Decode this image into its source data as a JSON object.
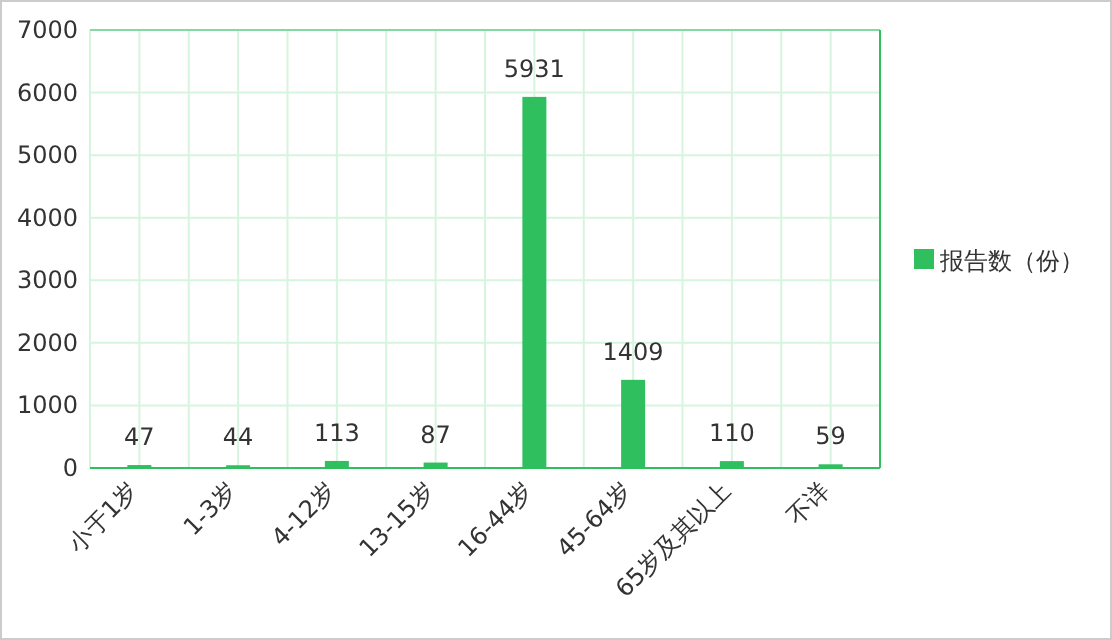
{
  "chart_data": {
    "type": "bar",
    "categories": [
      "小于1岁",
      "1-3岁",
      "4-12岁",
      "13-15岁",
      "16-44岁",
      "45-64岁",
      "65岁及其以上",
      "不详"
    ],
    "series": [
      {
        "name": "报告数（份）",
        "color": "#30bf5f",
        "values": [
          47,
          44,
          113,
          87,
          5931,
          1409,
          110,
          59
        ]
      }
    ],
    "ylim": [
      0,
      7000
    ],
    "yticks": [
      0,
      1000,
      2000,
      3000,
      4000,
      5000,
      6000,
      7000
    ],
    "grid": true,
    "data_labels": true,
    "legend": "right"
  }
}
